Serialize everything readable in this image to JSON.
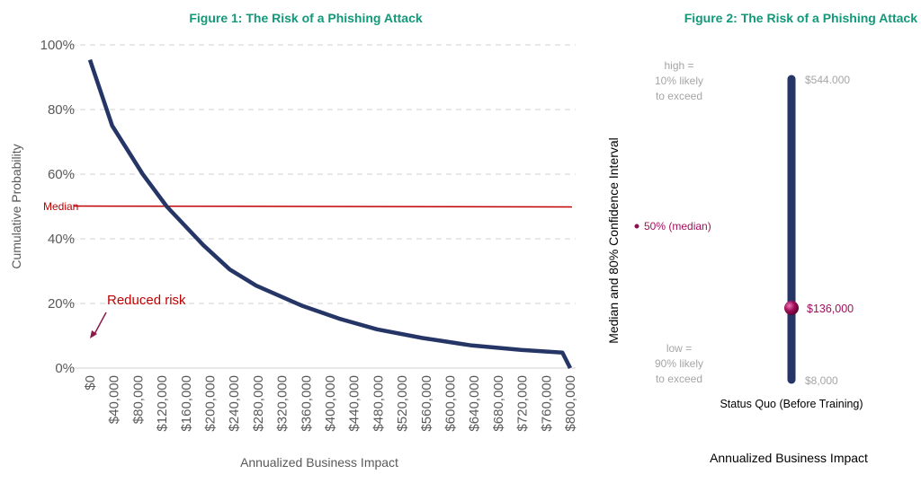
{
  "chart_data": [
    {
      "type": "line",
      "title": "Figure 1: The Risk of a Phishing Attack",
      "xlabel": "Annualized Business Impact",
      "ylabel": "Cumulative Probability",
      "xlim": [
        0,
        800000
      ],
      "ylim": [
        0,
        100
      ],
      "y_ticks": [
        "0%",
        "20%",
        "40%",
        "60%",
        "80%",
        "100%"
      ],
      "x_ticks": [
        "$0",
        "$40,000",
        "$80,000",
        "$120,000",
        "$160,000",
        "$200,000",
        "$240,000",
        "$280,000",
        "$320,000",
        "$360,000",
        "$400,000",
        "$440,000",
        "$480,000",
        "$520,000",
        "$560,000",
        "$600,000",
        "$640,000",
        "$680,000",
        "$720,000",
        "$760,000",
        "$800,000"
      ],
      "grid": "horizontal dashed",
      "series": [
        {
          "x": [
            0,
            37000,
            88000,
            128000,
            189000,
            233000,
            277000,
            352000,
            415000,
            478000,
            554000,
            636000,
            718000,
            787000,
            800000
          ],
          "y": [
            95.4,
            75,
            60,
            50,
            38,
            30.5,
            25.5,
            19.4,
            15.3,
            12,
            9.3,
            7,
            5.6,
            4.8,
            0
          ],
          "color": "#253566"
        }
      ],
      "reference_line": {
        "label": "Median",
        "y": 50,
        "color": "#c00000"
      },
      "annotation": {
        "text": "Reduced risk",
        "color": "#c00000",
        "arrow_color": "#8b1a4a"
      }
    },
    {
      "type": "interval",
      "title": "Figure 2: The Risk of a Phishing Attack",
      "ylabel": "Median and 80% Confidence Interval",
      "xlabel": "Annualized Business Impact",
      "category": "Status Quo (Before Training)",
      "low": 8000,
      "median": 136000,
      "high": 544000,
      "low_label": "$8,000",
      "median_label": "$136,000",
      "high_label": "$544.000",
      "bar_color": "#253566",
      "median_color": "#a0105a",
      "legend_high": [
        "high =",
        "10% likely",
        "to exceed"
      ],
      "legend_low": [
        "low =",
        "90% likely",
        "to exceed"
      ],
      "legend_median": "50% (median)"
    }
  ]
}
